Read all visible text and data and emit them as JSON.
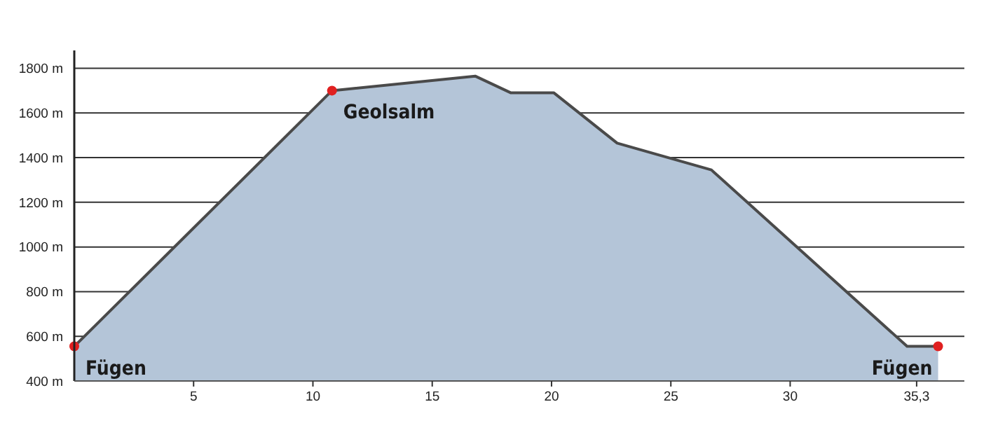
{
  "chart_data": {
    "type": "area",
    "xlim": [
      0,
      37.3
    ],
    "ylim": [
      400,
      1880
    ],
    "xticks": [
      5,
      10,
      15,
      20,
      25,
      30,
      {
        "value": 35.3,
        "label": "35,3"
      }
    ],
    "yticks": [
      {
        "value": 400,
        "label": "400 m"
      },
      {
        "value": 600,
        "label": "600 m"
      },
      {
        "value": 800,
        "label": "800 m"
      },
      {
        "value": 1000,
        "label": "1000 m"
      },
      {
        "value": 1200,
        "label": "1200 m"
      },
      {
        "value": 1400,
        "label": "1400 m"
      },
      {
        "value": 1600,
        "label": "1600 m"
      },
      {
        "value": 1800,
        "label": "1800 m"
      }
    ],
    "grid": "y",
    "series": [
      {
        "color": "#b4c5d8",
        "x": [
          0,
          10.8,
          16.8,
          18.3,
          20.1,
          22.75,
          26.7,
          34.9,
          36.2
        ],
        "values": [
          555,
          1700,
          1765,
          1690,
          1690,
          1465,
          1345,
          555,
          555
        ]
      },
      {
        "type": "scatter",
        "marker": "circle",
        "color": "#e02020",
        "x": [
          0,
          10.8,
          36.2
        ],
        "values": [
          555,
          1700,
          555
        ]
      }
    ],
    "annotations": [
      {
        "text": "Fügen",
        "x": 0,
        "y": 555
      },
      {
        "text": "Geolsalm",
        "x": 10.8,
        "y": 1700
      },
      {
        "text": "Fügen",
        "x": 36.2,
        "y": 555
      }
    ]
  }
}
